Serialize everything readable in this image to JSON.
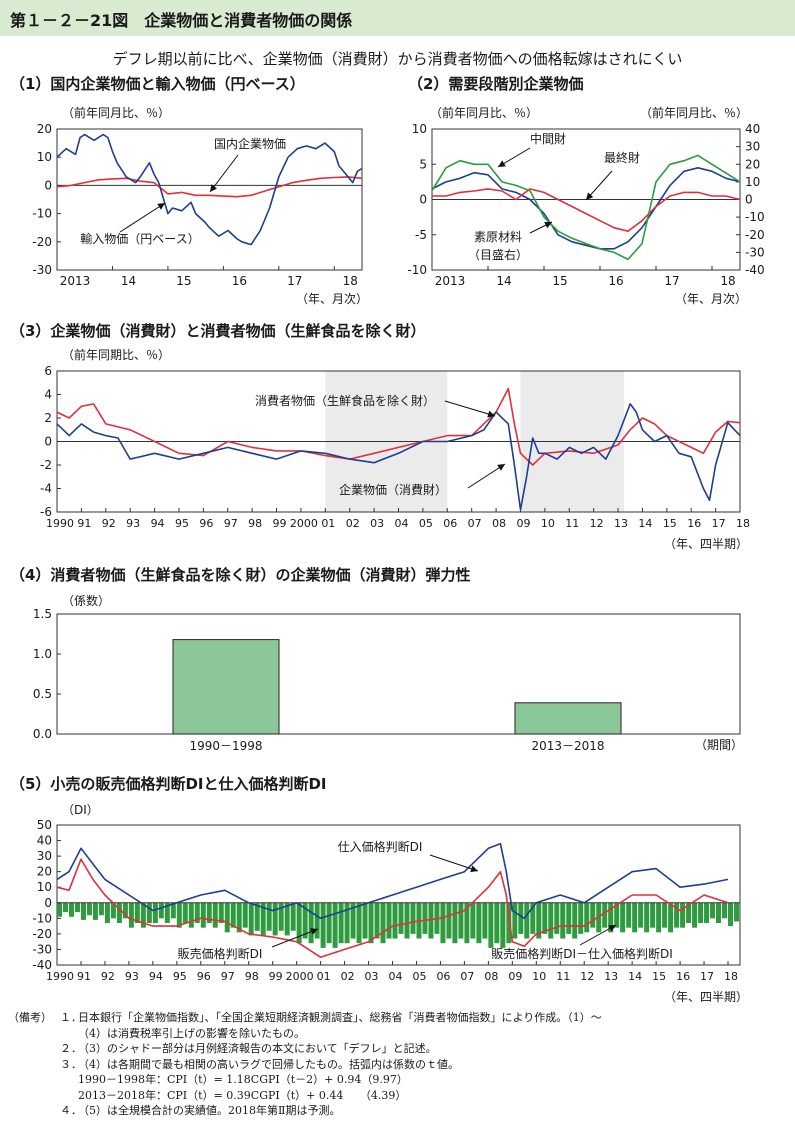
{
  "header": {
    "figure_title": "第１－２－21図　企業物価と消費者物価の関係",
    "subtitle": "デフレ期以前に比べ、企業物価（消費財）から消費者物価への価格転嫁はされにくい"
  },
  "colors": {
    "blue": "#1d3f8f",
    "red": "#e0303b",
    "green": "#2e9b3e",
    "bar_fill": "#8cc79a",
    "shade": "#ebebeb",
    "header_bg": "#d8ead0"
  },
  "panels": {
    "p1": {
      "title": "（1）国内企業物価と輸入物価（円ベース）",
      "unit": "（前年同月比、％）",
      "xunit": "（年、月次）",
      "label_blue": "国内企業物価",
      "label_import": "輸入物価（円ベース）"
    },
    "p2": {
      "title": "（2）需要段階別企業物価",
      "unit_left": "（前年同月比、％）",
      "unit_right": "（前年同月比、％）",
      "xunit": "（年、月次）",
      "label_mid": "中間財",
      "label_final": "最終財",
      "label_raw": "素原材料",
      "label_raw2": "（目盛右）"
    },
    "p3": {
      "title": "（3）企業物価（消費財）と消費者物価（生鮮食品を除く財）",
      "unit": "（前年同期比、％）",
      "xunit": "（年、四半期）",
      "label_cpi": "消費者物価（生鮮食品を除く財）",
      "label_cgpi": "企業物価（消費財）"
    },
    "p4": {
      "title": "（4）消費者物価（生鮮食品を除く財）の企業物価（消費財）弾力性",
      "unit": "（係数）",
      "xunit": "（期間）"
    },
    "p5": {
      "title": "（5）小売の販売価格判断DIと仕入価格判断DI",
      "unit": "（DI）",
      "xunit": "（年、四半期）",
      "label_buy": "仕入価格判断DI",
      "label_sell": "販売価格判断DI",
      "label_diff": "販売価格判断DI－仕入価格判断DI"
    }
  },
  "notes": {
    "head": "（備考）",
    "items": [
      {
        "no": "１．",
        "lines": [
          "日本銀行「企業物価指数」、「全国企業短期経済観測調査」、総務省「消費者物価指数」により作成。（1）～",
          "（4）は消費税率引上げの影響を除いたもの。"
        ]
      },
      {
        "no": "２．",
        "lines": [
          "（3）のシャドー部分は月例経済報告の本文において「デフレ」と記述。"
        ]
      },
      {
        "no": "３．",
        "lines": [
          "（4）は各期間で最も相関の高いラグで回帰したもの。括弧内は係数のｔ値。",
          "1990－1998年：CPI（t）= 1.18CGPI（t－2）+ 0.94（9.97）",
          "2013－2018年：CPI（t）= 0.39CGPI（t）+ 0.44　　（4.39）"
        ]
      },
      {
        "no": "４．",
        "lines": [
          "（5）は全規模合計の実績値。2018年第Ⅱ期は予測。"
        ]
      }
    ]
  },
  "chart_data": [
    {
      "id": "p1",
      "type": "line",
      "x_ticks": [
        "2013",
        "14",
        "15",
        "16",
        "17",
        "18"
      ],
      "ylim": [
        -30,
        20
      ],
      "yticks": [
        -30,
        -20,
        -10,
        0,
        10,
        20
      ],
      "xlim": [
        0,
        66
      ],
      "series": [
        {
          "name": "国内企業物価",
          "color": "red",
          "x": [
            0,
            3,
            6,
            9,
            12,
            15,
            18,
            21,
            24,
            27,
            30,
            33,
            36,
            39,
            42,
            45,
            48,
            51,
            54,
            57,
            60,
            63,
            66
          ],
          "y": [
            -0.5,
            0,
            1,
            2,
            2.3,
            2.5,
            1.5,
            1,
            -3,
            -2.5,
            -3.5,
            -3.5,
            -3.8,
            -4,
            -3.5,
            -2,
            -0.5,
            1,
            1.8,
            2.5,
            2.8,
            3,
            2.5
          ]
        },
        {
          "name": "輸入物価（円ベース）",
          "color": "blue",
          "x": [
            0,
            2,
            4,
            5,
            6,
            8,
            10,
            11,
            12,
            13,
            15,
            17,
            18,
            20,
            21,
            22,
            24,
            25,
            27,
            29,
            30,
            32,
            33,
            35,
            37,
            39,
            40,
            42,
            44,
            46,
            48,
            50,
            52,
            54,
            56,
            58,
            60,
            61,
            63,
            64,
            65,
            66
          ],
          "y": [
            10,
            13,
            11,
            17,
            18,
            16,
            18,
            17,
            12,
            8,
            3,
            1,
            3,
            8,
            4,
            1,
            -10,
            -8,
            -9,
            -6,
            -10,
            -13,
            -15,
            -18,
            -16,
            -19,
            -20,
            -21,
            -16,
            -8,
            3,
            10,
            13,
            14,
            13,
            15,
            12,
            7,
            3,
            1,
            5,
            6
          ]
        }
      ],
      "annotations": [
        "国内企業物価",
        "輸入物価（円ベース）"
      ]
    },
    {
      "id": "p2",
      "type": "line",
      "x_ticks": [
        "2013",
        "14",
        "15",
        "16",
        "17",
        "18"
      ],
      "ylim": [
        -10,
        10
      ],
      "yticks": [
        -10,
        -5,
        0,
        5,
        10
      ],
      "y2lim": [
        -40,
        40
      ],
      "y2ticks": [
        -40,
        -30,
        -20,
        -10,
        0,
        10,
        20,
        30,
        40
      ],
      "xlim": [
        0,
        66
      ],
      "series": [
        {
          "name": "中間財",
          "axis": "left",
          "color": "blue",
          "x": [
            0,
            3,
            6,
            9,
            12,
            15,
            18,
            21,
            24,
            27,
            30,
            33,
            36,
            39,
            42,
            45,
            48,
            51,
            54,
            57,
            60,
            63,
            66
          ],
          "y": [
            1.5,
            2.5,
            3,
            3.8,
            3.5,
            1.5,
            1,
            0,
            -2,
            -5,
            -6,
            -6.5,
            -7,
            -7,
            -6,
            -4,
            -1,
            2,
            4,
            4.5,
            4,
            3,
            2.5
          ]
        },
        {
          "name": "最終財",
          "axis": "left",
          "color": "red",
          "x": [
            0,
            3,
            6,
            9,
            12,
            15,
            18,
            21,
            24,
            27,
            30,
            33,
            36,
            39,
            42,
            45,
            48,
            51,
            54,
            57,
            60,
            63,
            66
          ],
          "y": [
            0.5,
            0.5,
            1,
            1.2,
            1.5,
            1.2,
            0,
            1.5,
            1,
            0,
            -1,
            -2,
            -3,
            -4,
            -4.5,
            -3,
            -1,
            0.5,
            1,
            1,
            0.5,
            0.5,
            0
          ]
        },
        {
          "name": "素原材料",
          "axis": "right",
          "color": "green",
          "x": [
            0,
            3,
            6,
            9,
            12,
            15,
            18,
            21,
            24,
            27,
            30,
            33,
            36,
            39,
            42,
            45,
            48,
            51,
            54,
            57,
            60,
            63,
            66
          ],
          "y": [
            5,
            18,
            22,
            20,
            20,
            10,
            8,
            5,
            -10,
            -18,
            -22,
            -25,
            -28,
            -30,
            -34,
            -25,
            10,
            20,
            22,
            25,
            20,
            15,
            10
          ]
        }
      ],
      "annotations": [
        "中間財",
        "最終財",
        "素原材料（目盛右）"
      ]
    },
    {
      "id": "p3",
      "type": "line",
      "x_ticks": [
        "1990",
        "91",
        "92",
        "93",
        "94",
        "95",
        "96",
        "97",
        "98",
        "99",
        "2000",
        "01",
        "02",
        "03",
        "04",
        "05",
        "06",
        "07",
        "08",
        "09",
        "10",
        "11",
        "12",
        "13",
        "14",
        "15",
        "16",
        "17",
        "18"
      ],
      "ylim": [
        -6,
        6
      ],
      "yticks": [
        -6,
        -4,
        -2,
        0,
        2,
        4,
        6
      ],
      "xlim": [
        1990,
        2018
      ],
      "shaded_periods": [
        [
          2001,
          2006
        ],
        [
          2009,
          2013.25
        ]
      ],
      "series": [
        {
          "name": "消費者物価（生鮮食品を除く財）",
          "color": "red",
          "x": [
            1990,
            1990.5,
            1991,
            1991.5,
            1992,
            1993,
            1994,
            1995,
            1996,
            1997,
            1998,
            1999,
            2000,
            2001,
            2002,
            2003,
            2004,
            2005,
            2006,
            2007,
            2008,
            2008.5,
            2008.75,
            2009,
            2009.5,
            2010,
            2011,
            2012,
            2013,
            2013.5,
            2014,
            2014.5,
            2015,
            2016,
            2016.5,
            2017,
            2017.5,
            2018
          ],
          "y": [
            2.5,
            2,
            3,
            3.2,
            1.5,
            1,
            0,
            -1,
            -1.2,
            0,
            -0.5,
            -0.8,
            -0.8,
            -1.2,
            -1.5,
            -1,
            -0.5,
            0,
            0.5,
            0.5,
            2.5,
            4.5,
            1.5,
            -1,
            -2,
            -1,
            -0.8,
            -1,
            -0.3,
            1,
            2,
            1.5,
            0.5,
            -0.5,
            -1,
            0.8,
            1.7,
            1.6
          ]
        },
        {
          "name": "企業物価（消費財）",
          "color": "blue",
          "x": [
            1990,
            1990.5,
            1991,
            1991.5,
            1992,
            1992.5,
            1993,
            1994,
            1995,
            1996,
            1997,
            1998,
            1999,
            2000,
            2001,
            2002,
            2003,
            2004,
            2005,
            2006,
            2007,
            2007.5,
            2008,
            2008.5,
            2008.75,
            2009,
            2009.25,
            2009.5,
            2009.75,
            2010,
            2010.5,
            2011,
            2011.5,
            2012,
            2012.5,
            2013,
            2013.5,
            2013.75,
            2014,
            2014.5,
            2015,
            2015.5,
            2016,
            2016.5,
            2016.75,
            2017,
            2017.5,
            2018
          ],
          "y": [
            1.5,
            0.5,
            1.5,
            0.8,
            0.5,
            0.3,
            -1.5,
            -1,
            -1.5,
            -1,
            -0.5,
            -1,
            -1.5,
            -0.8,
            -1,
            -1.5,
            -1.8,
            -1,
            0,
            0,
            0.5,
            1,
            2.5,
            1.5,
            -2,
            -5.8,
            -3,
            0.3,
            -1,
            -1,
            -1.5,
            -0.5,
            -1,
            -0.5,
            -1.5,
            0.5,
            3.2,
            2.5,
            1,
            0,
            0.5,
            -1,
            -1.3,
            -4,
            -5,
            -2,
            1.6,
            0.5
          ]
        }
      ],
      "annotations": [
        "消費者物価（生鮮食品を除く財）",
        "企業物価（消費財）"
      ]
    },
    {
      "id": "p4",
      "type": "bar",
      "categories": [
        "1990－1998",
        "2013－2018"
      ],
      "values": [
        1.18,
        0.39
      ],
      "ylim": [
        0,
        1.5
      ],
      "yticks": [
        "0.0",
        "0.5",
        "1.0",
        "1.5"
      ]
    },
    {
      "id": "p5",
      "type": "line",
      "x_ticks": [
        "1990",
        "91",
        "92",
        "93",
        "94",
        "95",
        "96",
        "97",
        "98",
        "99",
        "2000",
        "01",
        "02",
        "03",
        "04",
        "05",
        "06",
        "07",
        "08",
        "09",
        "10",
        "11",
        "12",
        "13",
        "14",
        "15",
        "16",
        "17",
        "18"
      ],
      "ylim": [
        -40,
        50
      ],
      "yticks": [
        -40,
        -30,
        -20,
        -10,
        0,
        10,
        20,
        30,
        40,
        50
      ],
      "xlim": [
        1990,
        2018.5
      ],
      "series": [
        {
          "name": "仕入価格判断DI",
          "color": "blue",
          "x": [
            1990,
            1990.5,
            1991,
            1991.5,
            1992,
            1993,
            1994,
            1995,
            1996,
            1997,
            1998,
            1999,
            2000,
            2001,
            2002,
            2003,
            2004,
            2005,
            2006,
            2007,
            2008,
            2008.5,
            2008.75,
            2009,
            2009.5,
            2010,
            2011,
            2012,
            2013,
            2014,
            2015,
            2016,
            2017,
            2018
          ],
          "y": [
            15,
            20,
            35,
            25,
            15,
            5,
            -5,
            0,
            5,
            8,
            0,
            -5,
            0,
            -10,
            -5,
            0,
            5,
            10,
            15,
            20,
            35,
            38,
            20,
            -5,
            -10,
            0,
            5,
            0,
            10,
            20,
            22,
            10,
            12,
            15
          ]
        },
        {
          "name": "販売価格判断DI",
          "color": "red",
          "x": [
            1990,
            1990.5,
            1991,
            1991.5,
            1992,
            1993,
            1994,
            1995,
            1996,
            1997,
            1998,
            1999,
            2000,
            2001,
            2002,
            2003,
            2004,
            2005,
            2006,
            2007,
            2008,
            2008.5,
            2008.75,
            2009,
            2009.5,
            2010,
            2011,
            2012,
            2013,
            2014,
            2015,
            2016,
            2017,
            2018
          ],
          "y": [
            10,
            8,
            28,
            15,
            5,
            -10,
            -15,
            -15,
            -10,
            -12,
            -20,
            -22,
            -25,
            -35,
            -30,
            -25,
            -15,
            -12,
            -10,
            -5,
            10,
            20,
            5,
            -25,
            -28,
            -20,
            -15,
            -15,
            -5,
            5,
            5,
            -5,
            5,
            0
          ]
        }
      ],
      "bars": {
        "name": "販売価格判断DI－仕入価格判断DI",
        "color": "green",
        "x": [
          1990,
          1991,
          1992,
          1993,
          1994,
          1995,
          1996,
          1997,
          1998,
          1999,
          2000,
          2001,
          2002,
          2003,
          2004,
          2005,
          2006,
          2007,
          2008,
          2009,
          2010,
          2011,
          2012,
          2013,
          2014,
          2015,
          2016,
          2017,
          2018
        ],
        "y": [
          -8,
          -10,
          -12,
          -15,
          -12,
          -15,
          -15,
          -18,
          -20,
          -20,
          -25,
          -28,
          -25,
          -25,
          -22,
          -22,
          -25,
          -25,
          -28,
          -22,
          -22,
          -22,
          -18,
          -18,
          -18,
          -18,
          -15,
          -12,
          -14
        ]
      },
      "annotations": [
        "仕入価格判断DI",
        "販売価格判断DI",
        "販売価格判断DI－仕入価格判断DI"
      ]
    }
  ]
}
